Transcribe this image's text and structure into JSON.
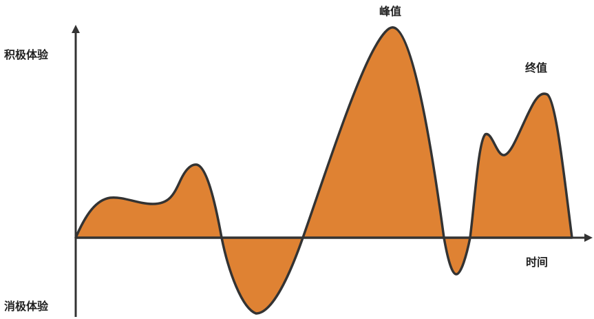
{
  "labels": {
    "positive_experience": "积极体验",
    "negative_experience": "消极体验",
    "time": "时间",
    "peak": "峰值",
    "end": "终值"
  },
  "colors": {
    "fill": "#DF8233",
    "stroke": "#333333",
    "axis": "#333333",
    "text": "#222222"
  }
}
